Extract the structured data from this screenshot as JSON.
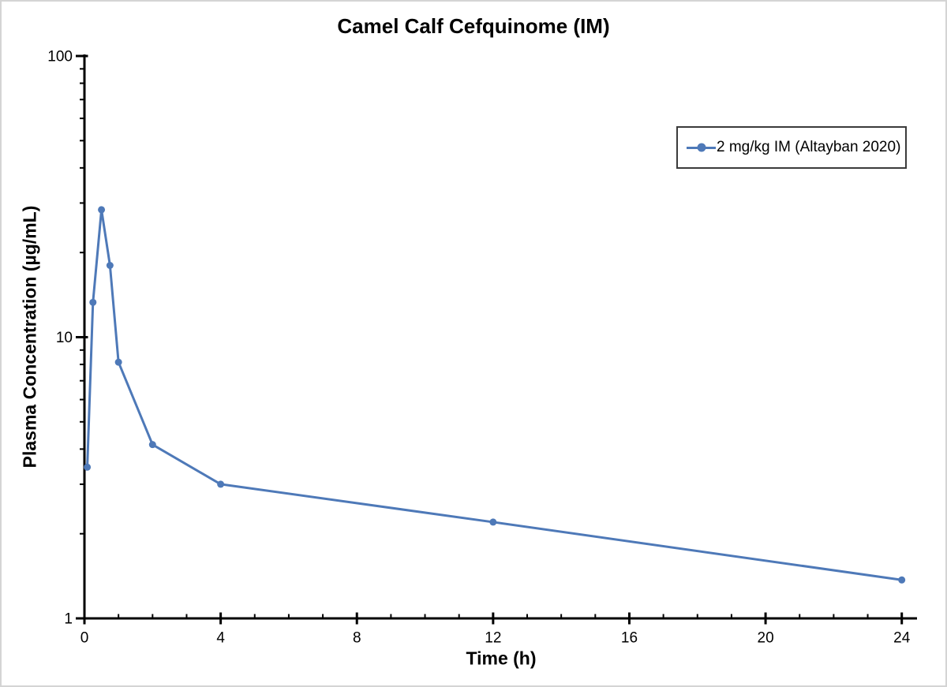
{
  "chart_data": {
    "type": "line",
    "title": "Camel Calf Cefquinome (IM)",
    "xlabel": "Time (h)",
    "ylabel": "Plasma Concentration (µg/mL)",
    "x_scale": "linear",
    "y_scale": "log",
    "xlim": [
      0,
      24
    ],
    "ylim": [
      1,
      100
    ],
    "x_major_ticks": [
      0,
      4,
      8,
      12,
      16,
      20,
      24
    ],
    "x_minor_tick_step": 1,
    "y_major_ticks": [
      1,
      10,
      100
    ],
    "y_minor_ticks": [
      2,
      3,
      4,
      5,
      6,
      7,
      8,
      9,
      20,
      30,
      40,
      50,
      60,
      70,
      80,
      90
    ],
    "grid": "off",
    "legend_position": "upper right",
    "series": [
      {
        "name": "2 mg/kg IM (Altayban 2020)",
        "color": "#4E79B8",
        "marker": "circle",
        "marker_size": 4.5,
        "line_width": 3,
        "x": [
          0.083,
          0.25,
          0.5,
          0.75,
          1,
          2,
          4,
          12,
          24
        ],
        "y": [
          3.45,
          13.3,
          28.4,
          18.0,
          8.15,
          4.15,
          3.0,
          2.2,
          1.37
        ]
      }
    ]
  },
  "colors": {
    "background": "#FFFFFF",
    "axis": "#000000",
    "tick_label": "#000000",
    "canvas_border": "#D4D4D4",
    "legend_border": "#3B3B3B"
  }
}
